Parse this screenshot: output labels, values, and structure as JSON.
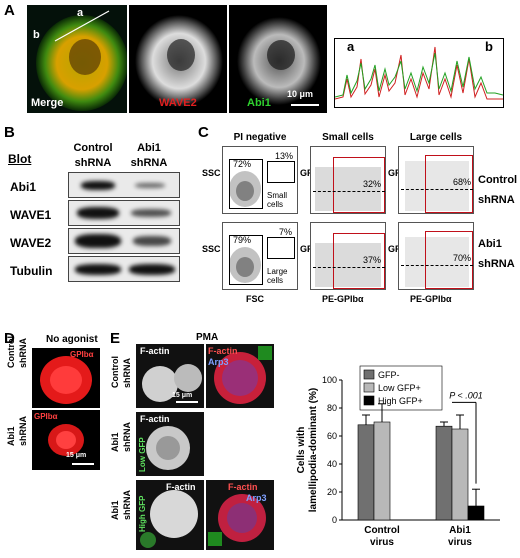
{
  "panels": {
    "a": "A",
    "b": "B",
    "c": "C",
    "d": "D",
    "e": "E"
  },
  "panel_a": {
    "merge_label": "Merge",
    "wave2_label": "WAVE2",
    "abi1_label": "Abi1",
    "scalebar_label": "10 μm",
    "line_point_a": "a",
    "line_point_b": "b",
    "profile_point_a": "a",
    "profile_point_b": "b"
  },
  "panel_b": {
    "blot_heading": "Blot",
    "col_control": "Control",
    "col_control_sub": "shRNA",
    "col_abi1": "Abi1",
    "col_abi1_sub": "shRNA",
    "rows": [
      "Abi1",
      "WAVE1",
      "WAVE2",
      "Tubulin"
    ]
  },
  "panel_c": {
    "col_titles": [
      "PI negative",
      "Small cells",
      "Large cells"
    ],
    "ssc": "SSC",
    "gfp": "GFP",
    "fsc": "FSC",
    "pe": "PE-GPIbα",
    "small_cells": "Small cells",
    "large_cells": "Large cells",
    "row1_label": "Control",
    "row1_sub": "shRNA",
    "row2_label": "Abi1",
    "row2_sub": "shRNA",
    "row1_pcts": [
      "72%",
      "13%",
      "32%",
      "68%"
    ],
    "row2_pcts": [
      "79%",
      "7%",
      "37%",
      "70%"
    ]
  },
  "panel_d": {
    "title": "No agonist",
    "control": "Control",
    "control_sub": "shRNA",
    "abi1": "Abi1",
    "abi1_sub": "shRNA",
    "stain": "GPIbα",
    "scalebar": "15 μm"
  },
  "panel_e": {
    "pma": "PMA",
    "factin": "F-actin",
    "arp3": "Arp3",
    "control": "Control",
    "control_sub": "shRNA",
    "abi1": "Abi1",
    "abi1_sub": "shRNA",
    "low_gfp": "Low GFP",
    "high_gfp": "High GFP",
    "scalebar": "15 μm"
  },
  "chart_data": {
    "type": "bar",
    "categories": [
      "Control virus",
      "Abi1 virus"
    ],
    "category_lines": [
      [
        "Control",
        "virus"
      ],
      [
        "Abi1",
        "virus"
      ]
    ],
    "series": [
      {
        "name": "GFP-",
        "color": "#707070",
        "values": [
          68,
          67
        ],
        "errors": [
          7,
          3
        ]
      },
      {
        "name": "Low GFP+",
        "color": "#b8b8b8",
        "values": [
          70,
          65
        ],
        "errors": [
          13,
          10
        ]
      },
      {
        "name": "High GFP+",
        "color": "#000000",
        "values": [
          null,
          10
        ],
        "errors": [
          null,
          12
        ]
      }
    ],
    "ylabel": "Cells with lamellipodia-dominant (%)",
    "ylabel_lines": [
      "Cells with",
      "lamellipodia-dominant (%)"
    ],
    "ylim": [
      0,
      100
    ],
    "yticks": [
      0,
      20,
      40,
      60,
      80,
      100
    ],
    "annotation": "P < .001",
    "legend_position": "top-left"
  }
}
